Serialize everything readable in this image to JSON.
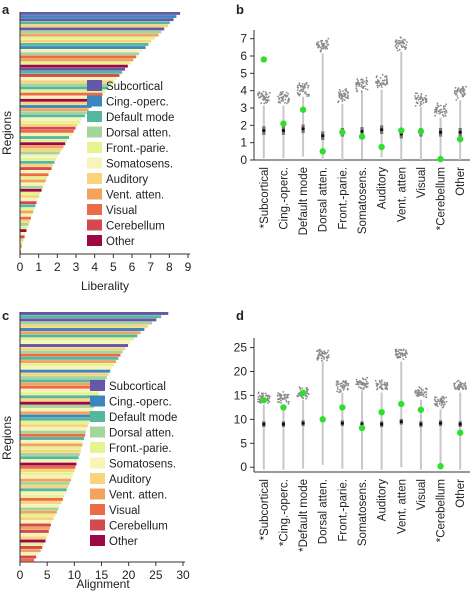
{
  "panels": {
    "a": {
      "letter": "a"
    },
    "b": {
      "letter": "b"
    },
    "c": {
      "letter": "c"
    },
    "d": {
      "letter": "d"
    }
  },
  "networks": [
    {
      "name": "Subcortical",
      "color": "#6459a6"
    },
    {
      "name": "Cing.-operc.",
      "color": "#3a86bd"
    },
    {
      "name": "Default mode",
      "color": "#55b89e"
    },
    {
      "name": "Dorsal atten.",
      "color": "#a5d59b"
    },
    {
      "name": "Front.-parie.",
      "color": "#e6f393"
    },
    {
      "name": "Somatosens.",
      "color": "#f8f3b6"
    },
    {
      "name": "Auditory",
      "color": "#f9d47c"
    },
    {
      "name": "Vent. atten.",
      "color": "#f2a35d"
    },
    {
      "name": "Visual",
      "color": "#ea6b45"
    },
    {
      "name": "Cerebellum",
      "color": "#d24a4f"
    },
    {
      "name": "Other",
      "color": "#9e0842"
    }
  ],
  "chart_data": [
    {
      "panel": "a",
      "type": "bar",
      "orientation": "horizontal",
      "xlabel": "Liberality",
      "ylabel": "Regions",
      "xlim": [
        0,
        9
      ],
      "xticks": [
        0,
        1,
        2,
        3,
        4,
        5,
        6,
        7,
        8,
        9
      ],
      "legend_position": "right",
      "values": [
        8.55,
        8.35,
        8.2,
        8.0,
        7.9,
        7.7,
        7.55,
        7.4,
        7.2,
        7.0,
        6.85,
        6.7,
        6.5,
        6.35,
        6.2,
        6.05,
        5.9,
        5.75,
        5.6,
        5.45,
        5.3,
        5.15,
        5.0,
        4.85,
        4.7,
        4.55,
        4.4,
        4.25,
        4.1,
        3.95,
        3.8,
        3.65,
        3.55,
        3.45,
        3.3,
        3.2,
        3.05,
        2.95,
        2.85,
        2.75,
        2.6,
        2.5,
        2.4,
        2.3,
        2.2,
        2.1,
        2.0,
        1.9,
        1.82,
        1.74,
        1.66,
        1.58,
        1.5,
        1.42,
        1.35,
        1.28,
        1.2,
        1.13,
        1.06,
        1.0,
        0.93,
        0.86,
        0.8,
        0.74,
        0.68,
        0.62,
        0.56,
        0.5,
        0.44,
        0.38,
        0.32,
        0.27,
        0.22,
        0.17,
        0.12,
        0.08,
        0.05,
        0.03
      ],
      "network_index": [
        0,
        1,
        0,
        2,
        6,
        0,
        3,
        7,
        4,
        6,
        2,
        1,
        5,
        3,
        8,
        7,
        4,
        10,
        0,
        2,
        9,
        5,
        6,
        3,
        2,
        4,
        8,
        5,
        10,
        6,
        1,
        7,
        3,
        2,
        5,
        4,
        6,
        9,
        8,
        5,
        2,
        4,
        10,
        7,
        6,
        3,
        5,
        4,
        2,
        6,
        9,
        5,
        8,
        4,
        7,
        5,
        3,
        10,
        4,
        6,
        5,
        9,
        2,
        4,
        7,
        5,
        8,
        6,
        3,
        4,
        10,
        5,
        9,
        6,
        4,
        7,
        5,
        8
      ]
    },
    {
      "panel": "b",
      "type": "scatter",
      "ylim": [
        0,
        7.5
      ],
      "yticks": [
        0,
        1,
        2,
        3,
        4,
        5,
        6,
        7
      ],
      "categories": [
        "Subcortical",
        "Cing.-operc.",
        "Default mode",
        "Dorsal atten.",
        "Front.-parie.",
        "Somatosens.",
        "Auditory",
        "Vent. atten",
        "Visual",
        "Cerebellum",
        "Other"
      ],
      "starred": [
        true,
        false,
        false,
        false,
        false,
        false,
        false,
        false,
        false,
        true,
        false
      ],
      "observed": [
        5.8,
        2.1,
        2.9,
        0.5,
        1.6,
        1.35,
        0.75,
        1.7,
        1.65,
        0.05,
        1.2
      ],
      "null_median": [
        1.7,
        1.7,
        1.8,
        1.4,
        1.6,
        1.65,
        1.75,
        1.5,
        1.6,
        1.6,
        1.6
      ],
      "null_cluster": [
        3.6,
        3.6,
        4.1,
        6.6,
        3.7,
        4.4,
        4.5,
        6.7,
        3.5,
        2.9,
        3.9
      ]
    },
    {
      "panel": "c",
      "type": "bar",
      "orientation": "horizontal",
      "xlabel": "Alignment",
      "ylabel": "Regions",
      "xlim": [
        0,
        30
      ],
      "xticks": [
        0,
        5,
        10,
        15,
        20,
        25,
        30
      ],
      "legend_position": "right",
      "values": [
        27.2,
        25.9,
        25.0,
        24.2,
        23.5,
        22.8,
        22.1,
        21.5,
        20.9,
        20.3,
        19.8,
        19.3,
        18.8,
        18.4,
        18.0,
        17.6,
        17.2,
        16.8,
        16.5,
        16.2,
        15.9,
        15.6,
        15.3,
        15.0,
        14.8,
        14.5,
        14.3,
        14.0,
        13.8,
        13.6,
        13.4,
        13.2,
        13.0,
        12.8,
        12.6,
        12.4,
        12.2,
        12.0,
        11.9,
        11.7,
        11.5,
        11.4,
        11.2,
        11.1,
        10.9,
        10.7,
        10.5,
        10.3,
        10.1,
        9.9,
        9.7,
        9.5,
        9.3,
        9.0,
        8.8,
        8.5,
        8.3,
        8.0,
        7.8,
        7.5,
        7.2,
        7.0,
        6.7,
        6.4,
        6.1,
        5.8,
        5.6,
        5.4,
        5.2,
        5.0,
        4.8,
        4.6,
        4.3,
        4.0,
        3.7,
        3.3,
        2.9,
        2.5
      ],
      "network_index": [
        0,
        2,
        0,
        3,
        6,
        1,
        7,
        2,
        4,
        5,
        0,
        6,
        3,
        8,
        2,
        7,
        4,
        5,
        1,
        6,
        3,
        2,
        7,
        8,
        5,
        4,
        2,
        6,
        10,
        3,
        5,
        7,
        1,
        2,
        4,
        6,
        5,
        3,
        8,
        2,
        5,
        7,
        4,
        6,
        3,
        2,
        5,
        10,
        8,
        6,
        4,
        5,
        7,
        3,
        6,
        2,
        5,
        4,
        8,
        6,
        5,
        3,
        7,
        4,
        6,
        5,
        9,
        7,
        9,
        5,
        6,
        10,
        4,
        9,
        7,
        5,
        9,
        8
      ]
    },
    {
      "panel": "d",
      "type": "scatter",
      "ylim": [
        -1,
        27
      ],
      "yticks": [
        0,
        5,
        10,
        15,
        20,
        25
      ],
      "categories": [
        "Subcortical",
        "Cing.-operc.",
        "Default mode",
        "Dorsal atten.",
        "Front.-parie.",
        "Somatosens.",
        "Auditory",
        "Vent. atten",
        "Visual",
        "Cerebellum",
        "Other"
      ],
      "starred": [
        true,
        true,
        true,
        false,
        false,
        false,
        false,
        false,
        false,
        true,
        false
      ],
      "observed": [
        14.0,
        12.5,
        15.5,
        10.0,
        12.5,
        8.2,
        11.5,
        13.2,
        12.0,
        0.2,
        7.2
      ],
      "null_median": [
        9.0,
        9.0,
        9.2,
        10.0,
        9.2,
        9.0,
        9.0,
        9.5,
        9.0,
        9.2,
        9.0
      ],
      "null_cluster": [
        14.5,
        14.5,
        15.5,
        23.5,
        17.0,
        17.5,
        17.0,
        23.5,
        15.5,
        13.5,
        17.0
      ]
    }
  ]
}
